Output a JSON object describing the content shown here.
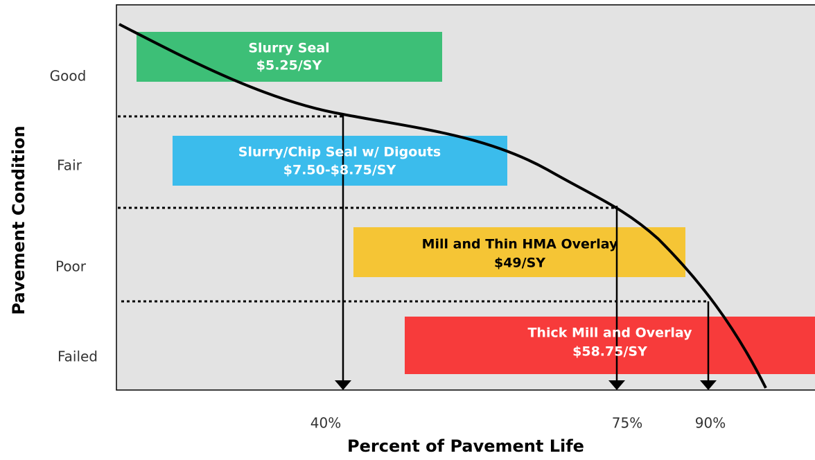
{
  "y_axis": {
    "title": "Pavement Condition",
    "labels": [
      "Good",
      "Fair",
      "Poor",
      "Failed"
    ]
  },
  "x_axis": {
    "title": "Percent of Pavement Life",
    "labels": [
      "40%",
      "75%",
      "90%"
    ]
  },
  "treatments": [
    {
      "name": "Slurry Seal",
      "cost": "$5.25/SY"
    },
    {
      "name": "Slurry/Chip Seal w/ Digouts",
      "cost": "$7.50-$8.75/SY"
    },
    {
      "name": "Mill and Thin HMA Overlay",
      "cost": "$49/SY"
    },
    {
      "name": "Thick Mill and Overlay",
      "cost": "$58.75/SY"
    }
  ]
}
